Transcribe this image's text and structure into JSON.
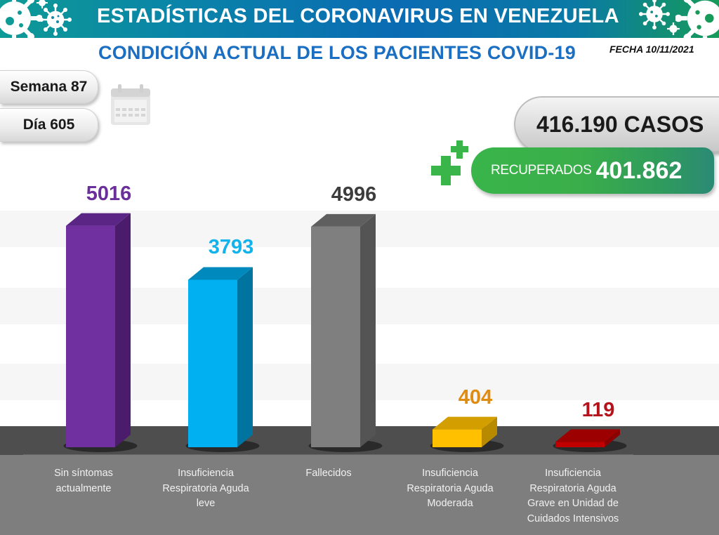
{
  "header": {
    "title": "ESTADÍSTICAS DEL CORONAVIRUS EN VENEZUELA",
    "icons": [
      "virus-icon",
      "virus-icon",
      "virus-icon",
      "virus-icon",
      "virus-icon",
      "virus-icon"
    ]
  },
  "subtitle": "CONDICIÓN ACTUAL DE LOS PACIENTES COVID-19",
  "fecha": "FECHA 10/11/2021",
  "week_label": "Semana 87",
  "day_label": "Día 605",
  "calendar_icon": "calendar-icon",
  "totals": {
    "casos": "416.190 CASOS",
    "recuperados_label": "RECUPERADOS",
    "recuperados_value": "401.862",
    "plus_icon": "medical-cross-icon"
  },
  "colors": {
    "header_teal": "#0e9a96",
    "header_blue": "#0a6bb3",
    "header_green": "#169a5a",
    "subtitle_blue": "#1a6fc2",
    "recuperados_green": "#39b54a"
  },
  "chart_data": {
    "type": "bar",
    "style": "3d-column",
    "title": "CONDICIÓN ACTUAL DE LOS PACIENTES COVID-19",
    "xlabel": "",
    "ylabel": "",
    "ylim": [
      0,
      5200
    ],
    "grid": true,
    "legend": "none",
    "categories": [
      "Sin síntomas actualmente",
      "Insuficiencia Respiratoria Aguda leve",
      "Fallecidos",
      "Insuficiencia Respiratoria Aguda Moderada",
      "Insuficiencia Respiratoria Aguda Grave en Unidad de Cuidados Intensivos"
    ],
    "category_lines": [
      [
        "Sin síntomas",
        "actualmente"
      ],
      [
        "Insuficiencia",
        "Respiratoria Aguda",
        "leve"
      ],
      [
        "Fallecidos"
      ],
      [
        "Insuficiencia",
        "Respiratoria Aguda",
        "Moderada"
      ],
      [
        "Insuficiencia",
        "Respiratoria Aguda",
        "Grave en Unidad de",
        "Cuidados Intensivos"
      ]
    ],
    "values": [
      5016,
      3793,
      4996,
      404,
      119
    ],
    "data_labels": [
      "5016",
      "3793",
      "4996",
      "404",
      "119"
    ],
    "bar_colors": [
      "#7030a0",
      "#00b0f0",
      "#7f7f7f",
      "#ffc000",
      "#c00000"
    ],
    "bar_side_colors": [
      "#4b1c6b",
      "#0074a0",
      "#545454",
      "#b88a00",
      "#8a0000"
    ],
    "bar_top_colors": [
      "#5a2584",
      "#0089bd",
      "#5f5f5f",
      "#d29e00",
      "#9c0000"
    ],
    "label_colors": [
      "#6a2f9a",
      "#12b2ec",
      "#3d3d3d",
      "#e08c12",
      "#b5121b"
    ]
  }
}
